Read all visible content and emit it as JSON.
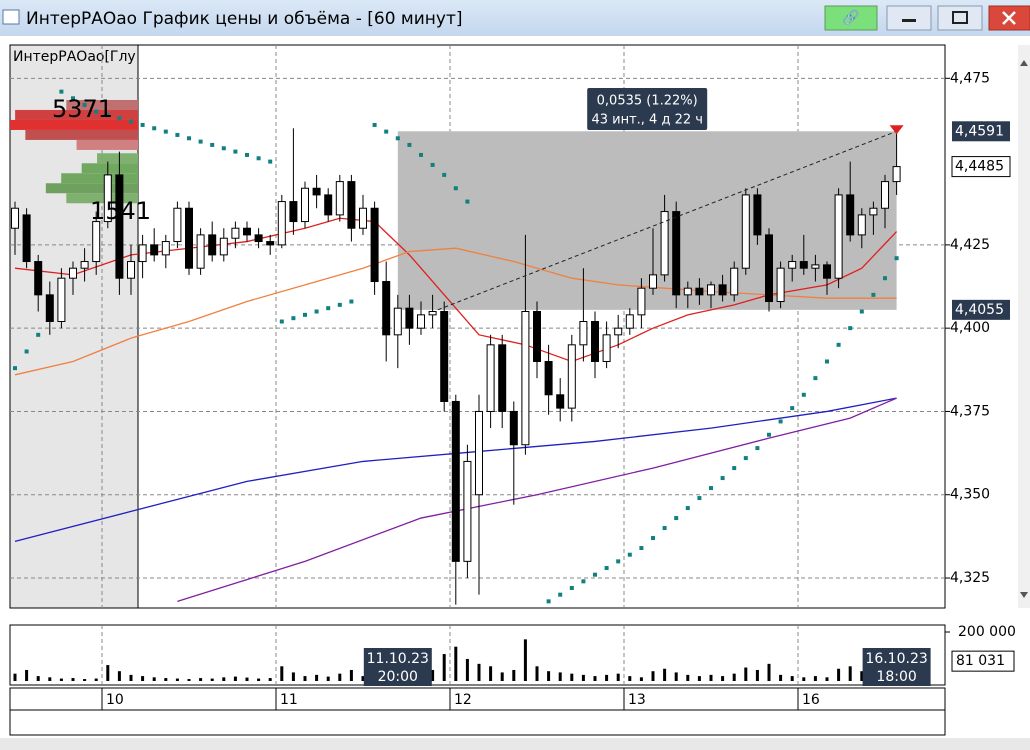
{
  "window": {
    "title": "ИнтерРАОао График цены и объёма - [60 минут]"
  },
  "price_chart": {
    "type": "candlestick",
    "legend": "ИнтерРАОао[Глу",
    "ylim": [
      4.316,
      4.485
    ],
    "yticks": [
      {
        "value": 4.475,
        "label": "4,475"
      },
      {
        "value": 4.425,
        "label": "4,425"
      },
      {
        "value": 4.4,
        "label": "4,400"
      },
      {
        "value": 4.375,
        "label": "4,375"
      },
      {
        "value": 4.35,
        "label": "4,350"
      },
      {
        "value": 4.325,
        "label": "4,325"
      }
    ],
    "up_color": "#ffffff",
    "down_color": "#000000",
    "candles": [
      [
        4.43,
        4.438,
        4.422,
        4.436
      ],
      [
        4.434,
        4.436,
        4.418,
        4.42
      ],
      [
        4.42,
        4.422,
        4.405,
        4.41
      ],
      [
        4.41,
        4.414,
        4.398,
        4.402
      ],
      [
        4.402,
        4.418,
        4.4,
        4.415
      ],
      [
        4.415,
        4.42,
        4.41,
        4.418
      ],
      [
        4.418,
        4.424,
        4.414,
        4.42
      ],
      [
        4.42,
        4.435,
        4.416,
        4.432
      ],
      [
        4.432,
        4.45,
        4.43,
        4.446
      ],
      [
        4.446,
        4.453,
        4.41,
        4.415
      ],
      [
        4.415,
        4.425,
        4.41,
        4.42
      ],
      [
        4.42,
        4.428,
        4.415,
        4.425
      ],
      [
        4.425,
        4.43,
        4.42,
        4.422
      ],
      [
        4.422,
        4.428,
        4.418,
        4.426
      ],
      [
        4.426,
        4.438,
        4.424,
        4.436
      ],
      [
        4.436,
        4.438,
        4.416,
        4.418
      ],
      [
        4.418,
        4.43,
        4.416,
        4.428
      ],
      [
        4.428,
        4.432,
        4.42,
        4.422
      ],
      [
        4.422,
        4.43,
        4.42,
        4.427
      ],
      [
        4.427,
        4.432,
        4.424,
        4.43
      ],
      [
        4.43,
        4.432,
        4.426,
        4.428
      ],
      [
        4.428,
        4.43,
        4.424,
        4.426
      ],
      [
        4.426,
        4.428,
        4.422,
        4.425
      ],
      [
        4.425,
        4.44,
        4.424,
        4.438
      ],
      [
        4.438,
        4.46,
        4.428,
        4.432
      ],
      [
        4.432,
        4.444,
        4.43,
        4.442
      ],
      [
        4.442,
        4.446,
        4.436,
        4.44
      ],
      [
        4.44,
        4.442,
        4.432,
        4.434
      ],
      [
        4.434,
        4.446,
        4.432,
        4.444
      ],
      [
        4.444,
        4.446,
        4.426,
        4.43
      ],
      [
        4.43,
        4.44,
        4.428,
        4.436
      ],
      [
        4.436,
        4.438,
        4.41,
        4.414
      ],
      [
        4.414,
        4.42,
        4.39,
        4.398
      ],
      [
        4.398,
        4.41,
        4.388,
        4.406
      ],
      [
        4.406,
        4.41,
        4.395,
        4.4
      ],
      [
        4.4,
        4.408,
        4.398,
        4.404
      ],
      [
        4.404,
        4.41,
        4.4,
        4.405
      ],
      [
        4.405,
        4.408,
        4.375,
        4.378
      ],
      [
        4.378,
        4.38,
        4.317,
        4.33
      ],
      [
        4.33,
        4.365,
        4.325,
        4.36
      ],
      [
        4.35,
        4.38,
        4.32,
        4.375
      ],
      [
        4.375,
        4.398,
        4.37,
        4.395
      ],
      [
        4.395,
        4.398,
        4.37,
        4.375
      ],
      [
        4.375,
        4.378,
        4.347,
        4.365
      ],
      [
        4.365,
        4.428,
        4.362,
        4.405
      ],
      [
        4.405,
        4.408,
        4.385,
        4.39
      ],
      [
        4.39,
        4.395,
        4.374,
        4.38
      ],
      [
        4.38,
        4.385,
        4.372,
        4.376
      ],
      [
        4.376,
        4.398,
        4.372,
        4.395
      ],
      [
        4.395,
        4.418,
        4.39,
        4.402
      ],
      [
        4.402,
        4.405,
        4.385,
        4.39
      ],
      [
        4.39,
        4.402,
        4.388,
        4.398
      ],
      [
        4.398,
        4.404,
        4.394,
        4.4
      ],
      [
        4.4,
        4.406,
        4.398,
        4.404
      ],
      [
        4.404,
        4.415,
        4.4,
        4.412
      ],
      [
        4.412,
        4.43,
        4.41,
        4.416
      ],
      [
        4.416,
        4.44,
        4.414,
        4.435
      ],
      [
        4.435,
        4.438,
        4.406,
        4.41
      ],
      [
        4.41,
        4.414,
        4.406,
        4.412
      ],
      [
        4.412,
        4.415,
        4.407,
        4.41
      ],
      [
        4.41,
        4.414,
        4.406,
        4.413
      ],
      [
        4.413,
        4.416,
        4.408,
        4.41
      ],
      [
        4.41,
        4.42,
        4.408,
        4.418
      ],
      [
        4.418,
        4.442,
        4.416,
        4.44
      ],
      [
        4.44,
        4.442,
        4.425,
        4.428
      ],
      [
        4.428,
        4.43,
        4.405,
        4.408
      ],
      [
        4.408,
        4.42,
        4.406,
        4.418
      ],
      [
        4.418,
        4.422,
        4.414,
        4.42
      ],
      [
        4.42,
        4.428,
        4.416,
        4.418
      ],
      [
        4.418,
        4.422,
        4.414,
        4.419
      ],
      [
        4.419,
        4.42,
        4.41,
        4.415
      ],
      [
        4.415,
        4.442,
        4.412,
        4.44
      ],
      [
        4.44,
        4.45,
        4.426,
        4.428
      ],
      [
        4.428,
        4.436,
        4.424,
        4.434
      ],
      [
        4.434,
        4.438,
        4.428,
        4.436
      ],
      [
        4.436,
        4.446,
        4.43,
        4.444
      ],
      [
        4.444,
        4.4591,
        4.44,
        4.4485
      ]
    ],
    "last_price_label": "4,4485",
    "moving_averages": [
      {
        "color": "#e02020",
        "x": [
          0,
          5,
          10,
          15,
          20,
          25,
          28,
          31,
          34,
          37,
          40,
          44,
          48,
          52,
          55,
          58,
          62,
          65,
          70,
          73,
          76
        ],
        "values": [
          4.418,
          4.416,
          4.422,
          4.424,
          4.426,
          4.43,
          4.433,
          4.432,
          4.422,
          4.41,
          4.398,
          4.395,
          4.39,
          4.395,
          4.4,
          4.404,
          4.407,
          4.41,
          4.413,
          4.418,
          4.429
        ]
      },
      {
        "color": "#f08040",
        "x": [
          0,
          5,
          10,
          15,
          20,
          25,
          30,
          34,
          38,
          43,
          48,
          52,
          56,
          60,
          65,
          70,
          76
        ],
        "values": [
          4.386,
          4.39,
          4.397,
          4.402,
          4.408,
          4.413,
          4.418,
          4.423,
          4.424,
          4.42,
          4.415,
          4.413,
          4.412,
          4.411,
          4.41,
          4.409,
          4.409
        ]
      },
      {
        "color": "#2020c0",
        "x": [
          0,
          10,
          20,
          30,
          40,
          50,
          60,
          70,
          76
        ],
        "values": [
          4.336,
          4.345,
          4.354,
          4.36,
          4.363,
          4.366,
          4.37,
          4.375,
          4.379
        ]
      },
      {
        "color": "#8020a0",
        "x": [
          14,
          25,
          35,
          45,
          55,
          65,
          72,
          76
        ],
        "values": [
          4.318,
          4.33,
          4.343,
          4.35,
          4.358,
          4.367,
          4.373,
          4.379
        ]
      }
    ],
    "sar": {
      "color": "#118080",
      "x": [
        0,
        1,
        2,
        4,
        5,
        6,
        7,
        8,
        9,
        10,
        11,
        12,
        13,
        14,
        15,
        16,
        17,
        18,
        19,
        20,
        21,
        22,
        23,
        24,
        25,
        26,
        27,
        28,
        29,
        31,
        32,
        33,
        34,
        35,
        36,
        37,
        38,
        39,
        46,
        47,
        48,
        49,
        50,
        51,
        52,
        53,
        54,
        55,
        56,
        57,
        58,
        59,
        60,
        61,
        62,
        63,
        64,
        65,
        66,
        67,
        68,
        69,
        70,
        71,
        72,
        73,
        74,
        75,
        76
      ],
      "values": [
        4.388,
        4.393,
        4.398,
        4.471,
        4.469,
        4.467,
        4.465,
        4.464,
        4.463,
        4.462,
        4.461,
        4.46,
        4.459,
        4.458,
        4.457,
        4.456,
        4.455,
        4.454,
        4.453,
        4.452,
        4.451,
        4.45,
        4.402,
        4.403,
        4.404,
        4.405,
        4.406,
        4.407,
        4.408,
        4.461,
        4.459,
        4.457,
        4.455,
        4.452,
        4.449,
        4.446,
        4.442,
        4.438,
        4.318,
        4.32,
        4.322,
        4.324,
        4.326,
        4.328,
        4.33,
        4.332,
        4.334,
        4.337,
        4.34,
        4.343,
        4.346,
        4.349,
        4.352,
        4.355,
        4.358,
        4.361,
        4.364,
        4.368,
        4.372,
        4.376,
        4.38,
        4.385,
        4.39,
        4.395,
        4.4,
        4.405,
        4.41,
        4.415,
        4.421
      ]
    },
    "range_box": {
      "from": 33,
      "to": 76,
      "low": {
        "value": 4.4055,
        "label": "4,4055"
      },
      "high": {
        "value": 4.4591,
        "label": "4,4591"
      },
      "change": "0,0535 (1.22%)",
      "duration": "43 инт., 4 д 22 ч"
    },
    "volume_profile": {
      "labels": [
        "5371",
        "1541"
      ],
      "prices": [
        4.467,
        4.464,
        4.461,
        4.458,
        4.455,
        4.451,
        4.448,
        4.445,
        4.442,
        4.439
      ],
      "values": [
        70,
        120,
        125,
        110,
        60,
        40,
        55,
        75,
        90,
        70
      ],
      "colors": [
        "#c07070",
        "#d04040",
        "#e03030",
        "#c05050",
        "#d08080",
        "#80b070",
        "#70a860",
        "#70a860",
        "#70a060",
        "#80b070"
      ]
    }
  },
  "volume_chart": {
    "type": "bar",
    "ylim": [
      0,
      200000
    ],
    "yticks": [
      {
        "value": 200000,
        "label": "200 000"
      }
    ],
    "color": "#000000",
    "values": [
      30000,
      45000,
      20000,
      15000,
      10000,
      12000,
      8000,
      10000,
      65000,
      40000,
      25000,
      20000,
      15000,
      12000,
      10000,
      8000,
      12000,
      10000,
      15000,
      18000,
      14000,
      10000,
      12000,
      60000,
      35000,
      20000,
      25000,
      18000,
      30000,
      45000,
      20000,
      55000,
      40000,
      60000,
      50000,
      30000,
      45000,
      110000,
      140000,
      90000,
      70000,
      60000,
      35000,
      45000,
      170000,
      60000,
      40000,
      35000,
      30000,
      25000,
      20000,
      25000,
      30000,
      20000,
      15000,
      40000,
      50000,
      35000,
      25000,
      20000,
      25000,
      20000,
      30000,
      55000,
      45000,
      70000,
      25000,
      20000,
      15000,
      20000,
      15000,
      50000,
      60000,
      40000,
      35000,
      45000,
      81031
    ],
    "last_volume_label": "81 031"
  },
  "time_axis": {
    "days": [
      {
        "label": "10",
        "start": 8
      },
      {
        "label": "11",
        "start": 23
      },
      {
        "label": "12",
        "start": 38
      },
      {
        "label": "13",
        "start": 53
      },
      {
        "label": "16",
        "start": 68
      }
    ],
    "cursor_labels": [
      {
        "date": "11.10.23",
        "time": "20:00",
        "index": 33
      },
      {
        "date": "16.10.23",
        "time": "18:00",
        "index": 76
      }
    ]
  }
}
